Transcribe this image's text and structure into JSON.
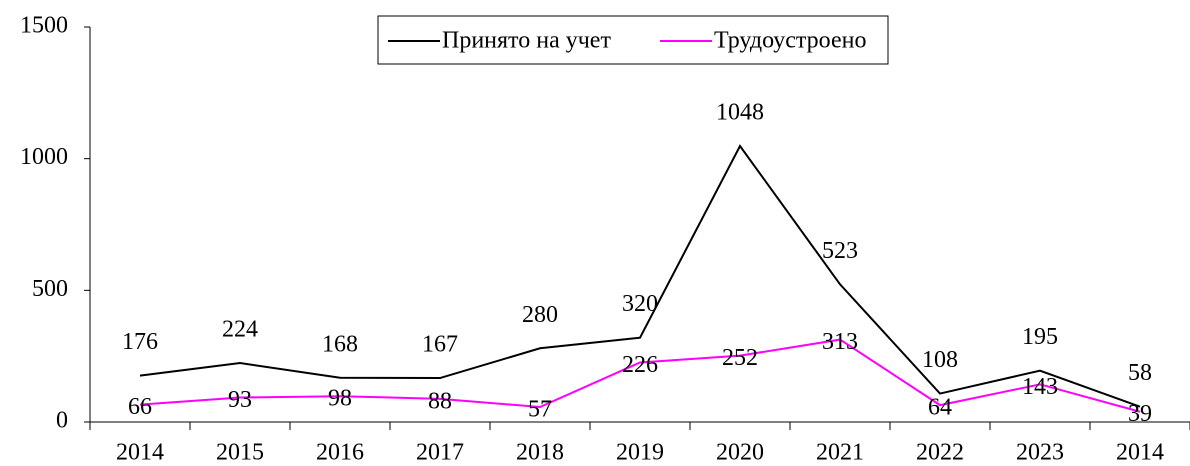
{
  "chart_data": {
    "type": "line",
    "categories": [
      "2014",
      "2015",
      "2016",
      "2017",
      "2018",
      "2019",
      "2020",
      "2021",
      "2022",
      "2023",
      "2014"
    ],
    "series": [
      {
        "name": "Принято на учет",
        "color": "#000000",
        "values": [
          176,
          224,
          168,
          167,
          280,
          320,
          1048,
          523,
          108,
          195,
          58
        ]
      },
      {
        "name": "Трудоустроено",
        "color": "#ff00ff",
        "values": [
          66,
          93,
          98,
          88,
          57,
          226,
          252,
          313,
          64,
          143,
          39
        ]
      }
    ],
    "ylim": [
      0,
      1500
    ],
    "yticks": [
      0,
      500,
      1000,
      1500
    ],
    "grid": false,
    "legend": "top",
    "data_labels": true
  }
}
